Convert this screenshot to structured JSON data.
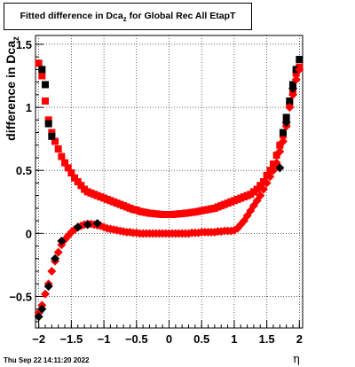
{
  "title": {
    "main": "Fitted difference in Dca",
    "sub": "z",
    "rest": "  for Global Rec All EtapT"
  },
  "footer": "Thu Sep 22 14:11:20 2022",
  "chart_data": {
    "type": "scatter",
    "xlabel": "η",
    "ylabel": {
      "main": "difference in Dca",
      "sub": "z"
    },
    "xlim": [
      -2.05,
      2.05
    ],
    "ylim": [
      -0.75,
      1.57
    ],
    "grid": true,
    "xticks": [
      -2,
      -1.5,
      -1,
      -0.5,
      0,
      0.5,
      1,
      1.5,
      2
    ],
    "xtick_labels": [
      "−2",
      "−1.5",
      "−1",
      "−0.5",
      "0",
      "0.5",
      "1",
      "1.5",
      "2"
    ],
    "yticks": [
      -0.5,
      0,
      0.5,
      1,
      1.5
    ],
    "ytick_labels": [
      "−0.5",
      "0",
      "0.5",
      "1",
      "1.5"
    ],
    "colors": {
      "upper_square": "#ff0000",
      "black_square": "#000000",
      "lower_diamond": "#ff0000"
    },
    "series": [
      {
        "marker": "square",
        "color": "#ff0000",
        "x": [
          -2.0,
          -1.95,
          -1.9,
          -1.85,
          -1.8,
          -1.75,
          -1.7,
          -1.65,
          -1.6,
          -1.55,
          -1.5,
          -1.45,
          -1.4,
          -1.35,
          -1.3,
          -1.25,
          -1.2,
          -1.15,
          -1.1,
          -1.05,
          -1.0,
          -0.95,
          -0.9,
          -0.85,
          -0.8,
          -0.75,
          -0.7,
          -0.65,
          -0.6,
          -0.55,
          -0.5,
          -0.45,
          -0.4,
          -0.35,
          -0.3,
          -0.25,
          -0.2,
          -0.15,
          -0.1,
          -0.05,
          0.0,
          0.05,
          0.1,
          0.15,
          0.2,
          0.25,
          0.3,
          0.35,
          0.4,
          0.45,
          0.5,
          0.55,
          0.6,
          0.65,
          0.7,
          0.75,
          0.8,
          0.85,
          0.9,
          0.95,
          1.0,
          1.05,
          1.1,
          1.15,
          1.2,
          1.25,
          1.3,
          1.35,
          1.4,
          1.45,
          1.5,
          1.55,
          1.6,
          1.65,
          1.7,
          1.75,
          1.8,
          1.85,
          1.9,
          1.95,
          2.0
        ],
        "y": [
          1.35,
          1.25,
          1.05,
          0.9,
          0.8,
          0.73,
          0.67,
          0.61,
          0.56,
          0.52,
          0.48,
          0.44,
          0.41,
          0.38,
          0.35,
          0.33,
          0.32,
          0.31,
          0.3,
          0.29,
          0.28,
          0.27,
          0.26,
          0.25,
          0.24,
          0.23,
          0.22,
          0.21,
          0.2,
          0.19,
          0.185,
          0.175,
          0.17,
          0.165,
          0.16,
          0.158,
          0.155,
          0.152,
          0.15,
          0.15,
          0.15,
          0.15,
          0.152,
          0.155,
          0.157,
          0.16,
          0.163,
          0.167,
          0.17,
          0.175,
          0.18,
          0.185,
          0.19,
          0.195,
          0.2,
          0.21,
          0.22,
          0.23,
          0.24,
          0.25,
          0.26,
          0.27,
          0.28,
          0.29,
          0.3,
          0.31,
          0.33,
          0.35,
          0.38,
          0.41,
          0.46,
          0.5,
          0.55,
          0.62,
          0.7,
          0.78,
          0.87,
          1.02,
          1.12,
          1.27,
          1.32
        ]
      },
      {
        "marker": "square",
        "color": "#000000",
        "x": [
          -1.95,
          -1.9,
          -1.85,
          -1.8,
          1.75,
          1.8,
          1.85,
          1.9,
          1.95,
          2.0
        ],
        "y": [
          1.3,
          1.18,
          0.87,
          0.77,
          0.8,
          0.92,
          1.05,
          1.18,
          1.3,
          1.38
        ]
      },
      {
        "marker": "diamond",
        "color": "#ff0000",
        "x": [
          -2.0,
          -1.95,
          -1.9,
          -1.85,
          -1.8,
          -1.75,
          -1.7,
          -1.65,
          -1.6,
          -1.55,
          -1.5,
          -1.45,
          -1.4,
          -1.35,
          -1.3,
          -1.25,
          -1.2,
          -1.15,
          -1.1,
          -1.05,
          -1.0,
          -0.95,
          -0.9,
          -0.85,
          -0.8,
          -0.75,
          -0.7,
          -0.65,
          -0.6,
          -0.55,
          -0.5,
          -0.45,
          -0.4,
          -0.35,
          -0.3,
          -0.25,
          -0.2,
          -0.15,
          -0.1,
          -0.05,
          0.0,
          0.05,
          0.1,
          0.15,
          0.2,
          0.25,
          0.3,
          0.35,
          0.4,
          0.45,
          0.5,
          0.55,
          0.6,
          0.65,
          0.7,
          0.75,
          0.8,
          0.85,
          0.9,
          0.95,
          1.0,
          1.05,
          1.1,
          1.15,
          1.2,
          1.25,
          1.3,
          1.35,
          1.4,
          1.45,
          1.5,
          1.55,
          1.6,
          1.65,
          1.7,
          1.75,
          1.8,
          1.85,
          1.9,
          1.95,
          2.0
        ],
        "y": [
          -0.63,
          -0.57,
          -0.48,
          -0.4,
          -0.3,
          -0.22,
          -0.15,
          -0.09,
          -0.05,
          -0.02,
          0.01,
          0.03,
          0.05,
          0.06,
          0.07,
          0.075,
          0.075,
          0.07,
          0.065,
          0.06,
          0.05,
          0.04,
          0.035,
          0.03,
          0.025,
          0.02,
          0.015,
          0.01,
          0.01,
          0.005,
          0.005,
          0.0,
          0.0,
          0.0,
          0.0,
          0.0,
          0.0,
          0.0,
          0.0,
          0.0,
          0.0,
          0.0,
          0.0,
          0.0,
          0.0,
          0.0,
          0.0,
          0.005,
          0.005,
          0.005,
          0.01,
          0.01,
          0.01,
          0.01,
          0.01,
          0.015,
          0.015,
          0.02,
          0.02,
          0.02,
          0.025,
          0.04,
          0.07,
          0.1,
          0.14,
          0.18,
          0.22,
          0.26,
          0.3,
          0.35,
          0.4,
          0.45,
          0.5,
          0.56,
          0.65,
          0.73,
          0.85,
          1.0,
          1.1,
          1.22,
          1.3
        ]
      },
      {
        "marker": "diamond",
        "color": "#000000",
        "x": [
          -2.0,
          -1.95,
          -1.85,
          -1.75,
          -1.65,
          -1.4,
          -1.25,
          -1.1,
          1.7,
          1.8,
          1.9
        ],
        "y": [
          -0.66,
          -0.6,
          -0.42,
          -0.2,
          -0.06,
          0.05,
          0.07,
          0.08,
          0.52,
          0.88,
          1.15
        ]
      }
    ]
  }
}
